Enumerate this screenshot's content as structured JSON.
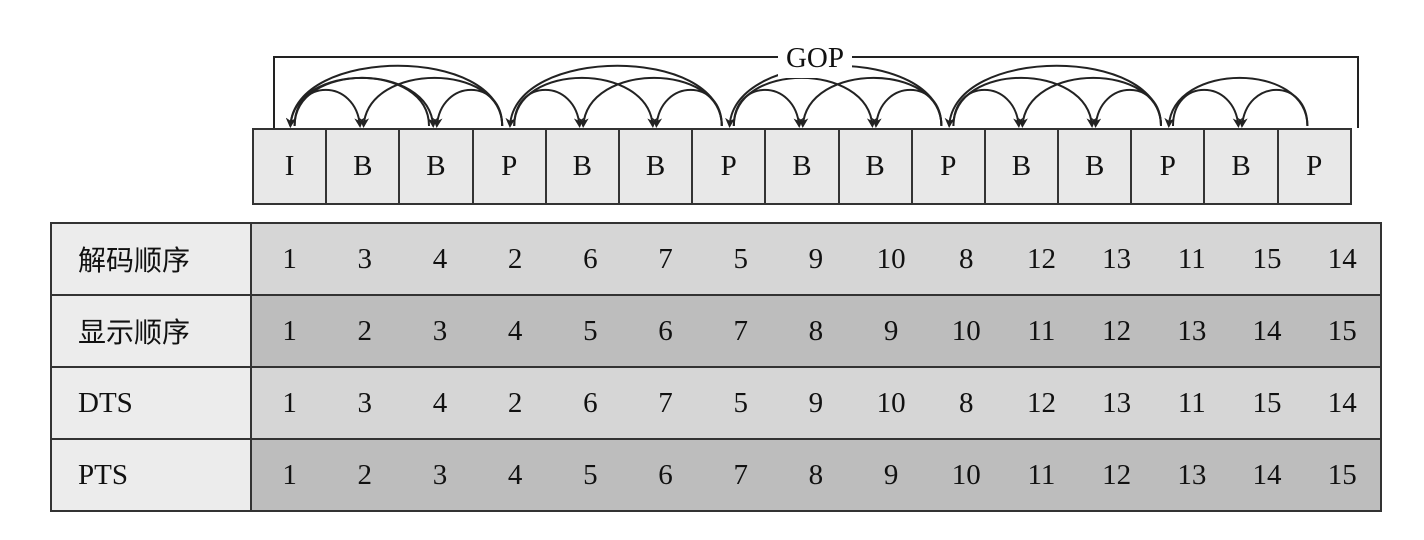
{
  "gop_label": "GOP",
  "frames": [
    "I",
    "B",
    "B",
    "P",
    "B",
    "B",
    "P",
    "B",
    "B",
    "P",
    "B",
    "B",
    "P",
    "B",
    "P"
  ],
  "rows": [
    {
      "label": "解码顺序",
      "values": [
        "1",
        "3",
        "4",
        "2",
        "6",
        "7",
        "5",
        "9",
        "10",
        "8",
        "12",
        "13",
        "11",
        "15",
        "14"
      ]
    },
    {
      "label": "显示顺序",
      "values": [
        "1",
        "2",
        "3",
        "4",
        "5",
        "6",
        "7",
        "8",
        "9",
        "10",
        "11",
        "12",
        "13",
        "14",
        "15"
      ]
    },
    {
      "label": "DTS",
      "values": [
        "1",
        "3",
        "4",
        "2",
        "6",
        "7",
        "5",
        "9",
        "10",
        "8",
        "12",
        "13",
        "11",
        "15",
        "14"
      ]
    },
    {
      "label": "PTS",
      "values": [
        "1",
        "2",
        "3",
        "4",
        "5",
        "6",
        "7",
        "8",
        "9",
        "10",
        "11",
        "12",
        "13",
        "14",
        "15"
      ]
    }
  ],
  "arrows": [
    {
      "from": 1,
      "to": 2
    },
    {
      "from": 1,
      "to": 3
    },
    {
      "from": 3,
      "to": 1
    },
    {
      "from": 4,
      "to": 2
    },
    {
      "from": 4,
      "to": 3
    },
    {
      "from": 4,
      "to": 1
    },
    {
      "from": 4,
      "to": 5
    },
    {
      "from": 4,
      "to": 6
    },
    {
      "from": 7,
      "to": 5
    },
    {
      "from": 7,
      "to": 6
    },
    {
      "from": 7,
      "to": 4
    },
    {
      "from": 7,
      "to": 8
    },
    {
      "from": 7,
      "to": 9
    },
    {
      "from": 10,
      "to": 8
    },
    {
      "from": 10,
      "to": 9
    },
    {
      "from": 10,
      "to": 7
    },
    {
      "from": 10,
      "to": 11
    },
    {
      "from": 10,
      "to": 12
    },
    {
      "from": 13,
      "to": 11
    },
    {
      "from": 13,
      "to": 12
    },
    {
      "from": 13,
      "to": 10
    },
    {
      "from": 13,
      "to": 14
    },
    {
      "from": 15,
      "to": 14
    },
    {
      "from": 15,
      "to": 13
    }
  ]
}
